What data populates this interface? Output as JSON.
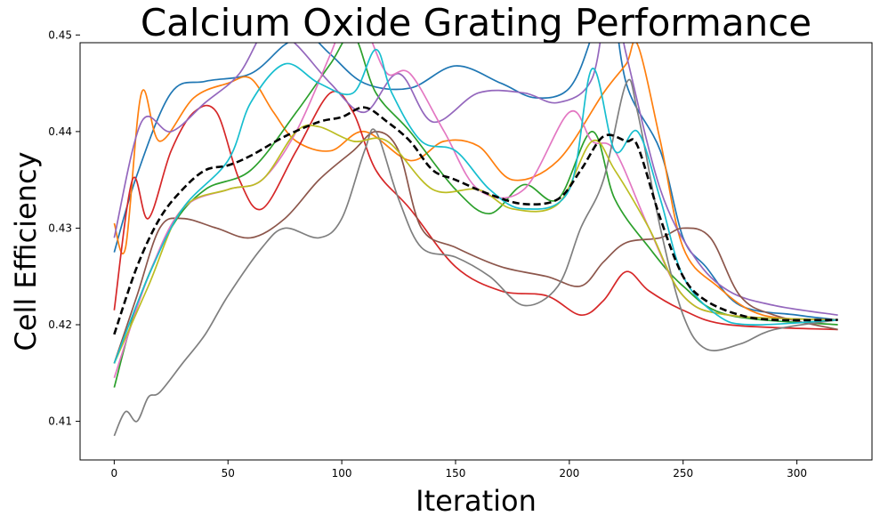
{
  "chart_data": {
    "type": "line",
    "title": "Calcium Oxide Grating Performance",
    "xlabel": "Iteration",
    "ylabel": "Cell Efficiency",
    "xlim": [
      -15,
      333
    ],
    "ylim": [
      0.406,
      0.4492
    ],
    "xticks": [
      0,
      50,
      100,
      150,
      200,
      250,
      300
    ],
    "yticks": [
      0.41,
      0.42,
      0.43,
      0.44,
      0.45
    ],
    "ytick_labels": [
      "0.41",
      "0.42",
      "0.43",
      "0.44",
      "0.45"
    ],
    "grid": false,
    "legend": "none",
    "series": [
      {
        "color": "#1f77b4",
        "style": "solid",
        "points": [
          [
            0,
            0.4275
          ],
          [
            10,
            0.4355
          ],
          [
            25,
            0.444
          ],
          [
            40,
            0.4452
          ],
          [
            60,
            0.446
          ],
          [
            75,
            0.449
          ],
          [
            85,
            0.45
          ],
          [
            95,
            0.448
          ],
          [
            110,
            0.445
          ],
          [
            130,
            0.4445
          ],
          [
            150,
            0.4468
          ],
          [
            170,
            0.445
          ],
          [
            185,
            0.4435
          ],
          [
            200,
            0.4445
          ],
          [
            210,
            0.45
          ],
          [
            217,
            0.4565
          ],
          [
            225,
            0.445
          ],
          [
            240,
            0.438
          ],
          [
            250,
            0.429
          ],
          [
            260,
            0.426
          ],
          [
            275,
            0.422
          ],
          [
            300,
            0.421
          ],
          [
            318,
            0.4205
          ]
        ]
      },
      {
        "color": "#ff7f0e",
        "style": "solid",
        "points": [
          [
            0,
            0.4305
          ],
          [
            5,
            0.428
          ],
          [
            12,
            0.444
          ],
          [
            20,
            0.439
          ],
          [
            35,
            0.4435
          ],
          [
            50,
            0.445
          ],
          [
            60,
            0.4455
          ],
          [
            70,
            0.442
          ],
          [
            80,
            0.439
          ],
          [
            95,
            0.438
          ],
          [
            110,
            0.44
          ],
          [
            130,
            0.437
          ],
          [
            145,
            0.439
          ],
          [
            160,
            0.4385
          ],
          [
            175,
            0.435
          ],
          [
            195,
            0.437
          ],
          [
            215,
            0.444
          ],
          [
            225,
            0.447
          ],
          [
            230,
            0.449
          ],
          [
            240,
            0.439
          ],
          [
            250,
            0.428
          ],
          [
            265,
            0.424
          ],
          [
            285,
            0.421
          ],
          [
            318,
            0.4205
          ]
        ]
      },
      {
        "color": "#2ca02c",
        "style": "solid",
        "points": [
          [
            0,
            0.4135
          ],
          [
            10,
            0.422
          ],
          [
            25,
            0.43
          ],
          [
            40,
            0.434
          ],
          [
            60,
            0.436
          ],
          [
            80,
            0.442
          ],
          [
            95,
            0.447
          ],
          [
            105,
            0.45
          ],
          [
            115,
            0.444
          ],
          [
            130,
            0.44
          ],
          [
            150,
            0.434
          ],
          [
            165,
            0.4315
          ],
          [
            180,
            0.4345
          ],
          [
            195,
            0.433
          ],
          [
            210,
            0.44
          ],
          [
            220,
            0.433
          ],
          [
            235,
            0.428
          ],
          [
            250,
            0.424
          ],
          [
            270,
            0.421
          ],
          [
            318,
            0.42
          ]
        ]
      },
      {
        "color": "#d62728",
        "style": "solid",
        "points": [
          [
            0,
            0.4215
          ],
          [
            8,
            0.435
          ],
          [
            15,
            0.431
          ],
          [
            25,
            0.438
          ],
          [
            35,
            0.442
          ],
          [
            45,
            0.442
          ],
          [
            55,
            0.435
          ],
          [
            65,
            0.432
          ],
          [
            80,
            0.438
          ],
          [
            95,
            0.444
          ],
          [
            105,
            0.442
          ],
          [
            115,
            0.436
          ],
          [
            130,
            0.432
          ],
          [
            150,
            0.426
          ],
          [
            170,
            0.4235
          ],
          [
            190,
            0.423
          ],
          [
            205,
            0.421
          ],
          [
            215,
            0.4225
          ],
          [
            225,
            0.4255
          ],
          [
            235,
            0.4235
          ],
          [
            250,
            0.4215
          ],
          [
            270,
            0.42
          ],
          [
            318,
            0.4195
          ]
        ]
      },
      {
        "color": "#9467bd",
        "style": "solid",
        "points": [
          [
            0,
            0.429
          ],
          [
            12,
            0.441
          ],
          [
            25,
            0.44
          ],
          [
            40,
            0.443
          ],
          [
            55,
            0.446
          ],
          [
            68,
            0.451
          ],
          [
            80,
            0.449
          ],
          [
            95,
            0.445
          ],
          [
            110,
            0.442
          ],
          [
            125,
            0.446
          ],
          [
            140,
            0.441
          ],
          [
            160,
            0.444
          ],
          [
            180,
            0.444
          ],
          [
            195,
            0.443
          ],
          [
            210,
            0.4455
          ],
          [
            218,
            0.455
          ],
          [
            225,
            0.448
          ],
          [
            240,
            0.434
          ],
          [
            255,
            0.427
          ],
          [
            270,
            0.4235
          ],
          [
            290,
            0.422
          ],
          [
            318,
            0.421
          ]
        ]
      },
      {
        "color": "#8c564b",
        "style": "solid",
        "points": [
          [
            0,
            0.416
          ],
          [
            10,
            0.423
          ],
          [
            20,
            0.43
          ],
          [
            30,
            0.431
          ],
          [
            45,
            0.43
          ],
          [
            60,
            0.429
          ],
          [
            75,
            0.431
          ],
          [
            90,
            0.435
          ],
          [
            105,
            0.438
          ],
          [
            115,
            0.44
          ],
          [
            125,
            0.438
          ],
          [
            135,
            0.43
          ],
          [
            150,
            0.428
          ],
          [
            170,
            0.426
          ],
          [
            190,
            0.425
          ],
          [
            205,
            0.424
          ],
          [
            215,
            0.4265
          ],
          [
            225,
            0.4285
          ],
          [
            240,
            0.429
          ],
          [
            250,
            0.43
          ],
          [
            262,
            0.429
          ],
          [
            275,
            0.423
          ],
          [
            290,
            0.421
          ],
          [
            318,
            0.4195
          ]
        ]
      },
      {
        "color": "#e377c2",
        "style": "solid",
        "points": [
          [
            0,
            0.4145
          ],
          [
            15,
            0.425
          ],
          [
            30,
            0.432
          ],
          [
            50,
            0.434
          ],
          [
            65,
            0.435
          ],
          [
            80,
            0.44
          ],
          [
            95,
            0.448
          ],
          [
            105,
            0.4535
          ],
          [
            112,
            0.45
          ],
          [
            120,
            0.446
          ],
          [
            130,
            0.446
          ],
          [
            145,
            0.44
          ],
          [
            160,
            0.434
          ],
          [
            180,
            0.434
          ],
          [
            200,
            0.442
          ],
          [
            210,
            0.439
          ],
          [
            220,
            0.438
          ],
          [
            235,
            0.43
          ],
          [
            250,
            0.423
          ],
          [
            270,
            0.421
          ],
          [
            318,
            0.4205
          ]
        ]
      },
      {
        "color": "#7f7f7f",
        "style": "solid",
        "points": [
          [
            0,
            0.4085
          ],
          [
            5,
            0.411
          ],
          [
            10,
            0.41
          ],
          [
            15,
            0.4125
          ],
          [
            20,
            0.413
          ],
          [
            30,
            0.416
          ],
          [
            40,
            0.419
          ],
          [
            50,
            0.423
          ],
          [
            65,
            0.428
          ],
          [
            75,
            0.43
          ],
          [
            90,
            0.429
          ],
          [
            100,
            0.431
          ],
          [
            110,
            0.438
          ],
          [
            115,
            0.44
          ],
          [
            125,
            0.433
          ],
          [
            135,
            0.428
          ],
          [
            150,
            0.427
          ],
          [
            165,
            0.425
          ],
          [
            180,
            0.422
          ],
          [
            195,
            0.424
          ],
          [
            205,
            0.43
          ],
          [
            215,
            0.435
          ],
          [
            225,
            0.445
          ],
          [
            230,
            0.442
          ],
          [
            240,
            0.43
          ],
          [
            250,
            0.421
          ],
          [
            260,
            0.4175
          ],
          [
            275,
            0.418
          ],
          [
            290,
            0.4195
          ],
          [
            318,
            0.4205
          ]
        ]
      },
      {
        "color": "#bcbd22",
        "style": "solid",
        "points": [
          [
            0,
            0.416
          ],
          [
            15,
            0.424
          ],
          [
            30,
            0.432
          ],
          [
            50,
            0.434
          ],
          [
            65,
            0.435
          ],
          [
            80,
            0.44
          ],
          [
            90,
            0.4405
          ],
          [
            105,
            0.439
          ],
          [
            120,
            0.439
          ],
          [
            140,
            0.434
          ],
          [
            160,
            0.434
          ],
          [
            175,
            0.432
          ],
          [
            195,
            0.4325
          ],
          [
            210,
            0.439
          ],
          [
            220,
            0.436
          ],
          [
            235,
            0.43
          ],
          [
            250,
            0.423
          ],
          [
            270,
            0.421
          ],
          [
            318,
            0.4205
          ]
        ]
      },
      {
        "color": "#17becf",
        "style": "solid",
        "points": [
          [
            0,
            0.416
          ],
          [
            15,
            0.425
          ],
          [
            30,
            0.432
          ],
          [
            50,
            0.437
          ],
          [
            60,
            0.443
          ],
          [
            75,
            0.447
          ],
          [
            90,
            0.445
          ],
          [
            105,
            0.444
          ],
          [
            115,
            0.4485
          ],
          [
            122,
            0.444
          ],
          [
            135,
            0.439
          ],
          [
            150,
            0.438
          ],
          [
            165,
            0.434
          ],
          [
            180,
            0.432
          ],
          [
            200,
            0.434
          ],
          [
            210,
            0.4465
          ],
          [
            220,
            0.438
          ],
          [
            230,
            0.44
          ],
          [
            240,
            0.433
          ],
          [
            250,
            0.425
          ],
          [
            265,
            0.421
          ],
          [
            280,
            0.42
          ],
          [
            318,
            0.4205
          ]
        ]
      },
      {
        "color": "#000000",
        "style": "dashed",
        "points": [
          [
            0,
            0.419
          ],
          [
            10,
            0.426
          ],
          [
            20,
            0.431
          ],
          [
            30,
            0.434
          ],
          [
            40,
            0.436
          ],
          [
            50,
            0.4365
          ],
          [
            60,
            0.4375
          ],
          [
            75,
            0.4395
          ],
          [
            90,
            0.441
          ],
          [
            100,
            0.4415
          ],
          [
            110,
            0.4425
          ],
          [
            120,
            0.441
          ],
          [
            130,
            0.439
          ],
          [
            140,
            0.436
          ],
          [
            150,
            0.435
          ],
          [
            165,
            0.4335
          ],
          [
            180,
            0.4325
          ],
          [
            195,
            0.433
          ],
          [
            205,
            0.436
          ],
          [
            215,
            0.4395
          ],
          [
            225,
            0.439
          ],
          [
            230,
            0.4385
          ],
          [
            240,
            0.431
          ],
          [
            250,
            0.425
          ],
          [
            260,
            0.4225
          ],
          [
            275,
            0.421
          ],
          [
            290,
            0.4205
          ],
          [
            318,
            0.4205
          ]
        ]
      }
    ]
  }
}
